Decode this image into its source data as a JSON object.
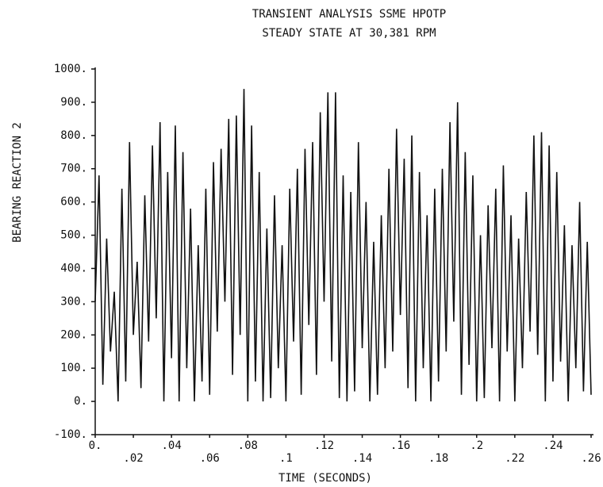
{
  "chart_data": {
    "type": "line",
    "title": "TRANSIENT ANALYSIS SSME HPOTP",
    "subtitle": "STEADY STATE AT 30,381 RPM",
    "xlabel": "TIME (SECONDS)",
    "ylabel": "BEARING REACTION 2",
    "x": [
      0,
      0.002,
      0.004,
      0.006,
      0.008,
      0.01,
      0.012,
      0.014,
      0.016,
      0.018,
      0.02,
      0.022,
      0.024,
      0.026,
      0.028,
      0.03,
      0.032,
      0.034,
      0.036,
      0.038,
      0.04,
      0.042,
      0.044,
      0.046,
      0.048,
      0.05,
      0.052,
      0.054,
      0.056,
      0.058,
      0.06,
      0.062,
      0.064,
      0.066,
      0.068,
      0.07,
      0.072,
      0.074,
      0.076,
      0.078,
      0.08,
      0.082,
      0.084,
      0.086,
      0.088,
      0.09,
      0.092,
      0.094,
      0.096,
      0.098,
      0.1,
      0.102,
      0.104,
      0.106,
      0.108,
      0.11,
      0.112,
      0.114,
      0.116,
      0.118,
      0.12,
      0.122,
      0.124,
      0.126,
      0.128,
      0.13,
      0.132,
      0.134,
      0.136,
      0.138,
      0.14,
      0.142,
      0.144,
      0.146,
      0.148,
      0.15,
      0.152,
      0.154,
      0.156,
      0.158,
      0.16,
      0.162,
      0.164,
      0.166,
      0.168,
      0.17,
      0.172,
      0.174,
      0.176,
      0.178,
      0.18,
      0.182,
      0.184,
      0.186,
      0.188,
      0.19,
      0.192,
      0.194,
      0.196,
      0.198,
      0.2,
      0.202,
      0.204,
      0.206,
      0.208,
      0.21,
      0.212,
      0.214,
      0.216,
      0.218,
      0.22,
      0.222,
      0.224,
      0.226,
      0.228,
      0.23,
      0.232,
      0.234,
      0.236,
      0.238,
      0.24,
      0.242,
      0.244,
      0.246,
      0.248,
      0.25,
      0.252,
      0.254,
      0.256,
      0.258,
      0.26
    ],
    "series": [
      {
        "name": "BEARING REACTION 2",
        "color": "#111111",
        "values": [
          300,
          680,
          50,
          490,
          150,
          330,
          0,
          640,
          60,
          780,
          200,
          420,
          40,
          620,
          180,
          770,
          250,
          840,
          0,
          690,
          130,
          830,
          0,
          750,
          100,
          580,
          0,
          470,
          60,
          640,
          20,
          720,
          210,
          760,
          300,
          850,
          80,
          860,
          200,
          940,
          0,
          830,
          60,
          690,
          0,
          520,
          10,
          620,
          100,
          470,
          0,
          640,
          180,
          700,
          20,
          760,
          230,
          780,
          80,
          870,
          300,
          930,
          120,
          930,
          10,
          680,
          0,
          630,
          30,
          780,
          160,
          600,
          0,
          480,
          20,
          560,
          100,
          700,
          150,
          820,
          260,
          730,
          40,
          800,
          0,
          690,
          100,
          560,
          0,
          640,
          60,
          700,
          150,
          840,
          240,
          900,
          20,
          750,
          110,
          680,
          0,
          500,
          10,
          590,
          160,
          640,
          0,
          710,
          150,
          560,
          0,
          490,
          100,
          630,
          210,
          800,
          140,
          810,
          0,
          770,
          60,
          690,
          120,
          530,
          0,
          470,
          100,
          600,
          30,
          480,
          20
        ]
      }
    ],
    "xlim": [
      0,
      0.26
    ],
    "ylim": [
      -100,
      1000
    ],
    "xticks": [
      {
        "value": 0,
        "label": "0."
      },
      {
        "value": 0.02,
        "label": ".02"
      },
      {
        "value": 0.04,
        "label": ".04"
      },
      {
        "value": 0.06,
        "label": ".06"
      },
      {
        "value": 0.08,
        "label": ".08"
      },
      {
        "value": 0.1,
        "label": ".1"
      },
      {
        "value": 0.12,
        "label": ".12"
      },
      {
        "value": 0.14,
        "label": ".14"
      },
      {
        "value": 0.16,
        "label": ".16"
      },
      {
        "value": 0.18,
        "label": ".18"
      },
      {
        "value": 0.2,
        "label": ".2"
      },
      {
        "value": 0.22,
        "label": ".22"
      },
      {
        "value": 0.24,
        "label": ".24"
      },
      {
        "value": 0.26,
        "label": ".26"
      }
    ],
    "yticks": [
      {
        "value": -100,
        "label": "-100."
      },
      {
        "value": 0,
        "label": "0."
      },
      {
        "value": 100,
        "label": "100."
      },
      {
        "value": 200,
        "label": "200."
      },
      {
        "value": 300,
        "label": "300."
      },
      {
        "value": 400,
        "label": "400."
      },
      {
        "value": 500,
        "label": "500."
      },
      {
        "value": 600,
        "label": "600."
      },
      {
        "value": 700,
        "label": "700."
      },
      {
        "value": 800,
        "label": "800."
      },
      {
        "value": 900,
        "label": "900."
      },
      {
        "value": 1000,
        "label": "1000."
      }
    ],
    "grid": false
  }
}
